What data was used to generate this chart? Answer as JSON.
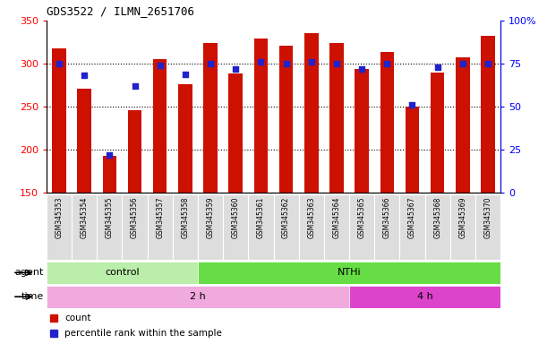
{
  "title": "GDS3522 / ILMN_2651706",
  "samples": [
    "GSM345353",
    "GSM345354",
    "GSM345355",
    "GSM345356",
    "GSM345357",
    "GSM345358",
    "GSM345359",
    "GSM345360",
    "GSM345361",
    "GSM345362",
    "GSM345363",
    "GSM345364",
    "GSM345365",
    "GSM345366",
    "GSM345367",
    "GSM345368",
    "GSM345369",
    "GSM345370"
  ],
  "counts": [
    318,
    271,
    193,
    246,
    305,
    276,
    324,
    289,
    329,
    321,
    335,
    324,
    294,
    314,
    250,
    290,
    307,
    332
  ],
  "percentile_ranks": [
    75,
    68,
    22,
    62,
    74,
    69,
    75,
    72,
    76,
    75,
    76,
    75,
    72,
    75,
    51,
    73,
    75,
    75
  ],
  "ylim_left": [
    150,
    350
  ],
  "ylim_right": [
    0,
    100
  ],
  "yticks_left": [
    150,
    200,
    250,
    300,
    350
  ],
  "yticks_right": [
    0,
    25,
    50,
    75,
    100
  ],
  "bar_color": "#cc1100",
  "dot_color": "#2222cc",
  "agent_labels": [
    "control",
    "NTHi"
  ],
  "agent_ranges": [
    [
      0,
      6
    ],
    [
      6,
      18
    ]
  ],
  "agent_color_light": "#bbeeaa",
  "agent_color_dark": "#66dd44",
  "time_labels": [
    "2 h",
    "4 h"
  ],
  "time_ranges": [
    [
      0,
      12
    ],
    [
      12,
      18
    ]
  ],
  "time_color_light": "#f0aadd",
  "time_color_dark": "#dd44cc",
  "legend_items": [
    "count",
    "percentile rank within the sample"
  ],
  "bg_color": "#ffffff",
  "bar_width": 0.55,
  "base_value": 150
}
